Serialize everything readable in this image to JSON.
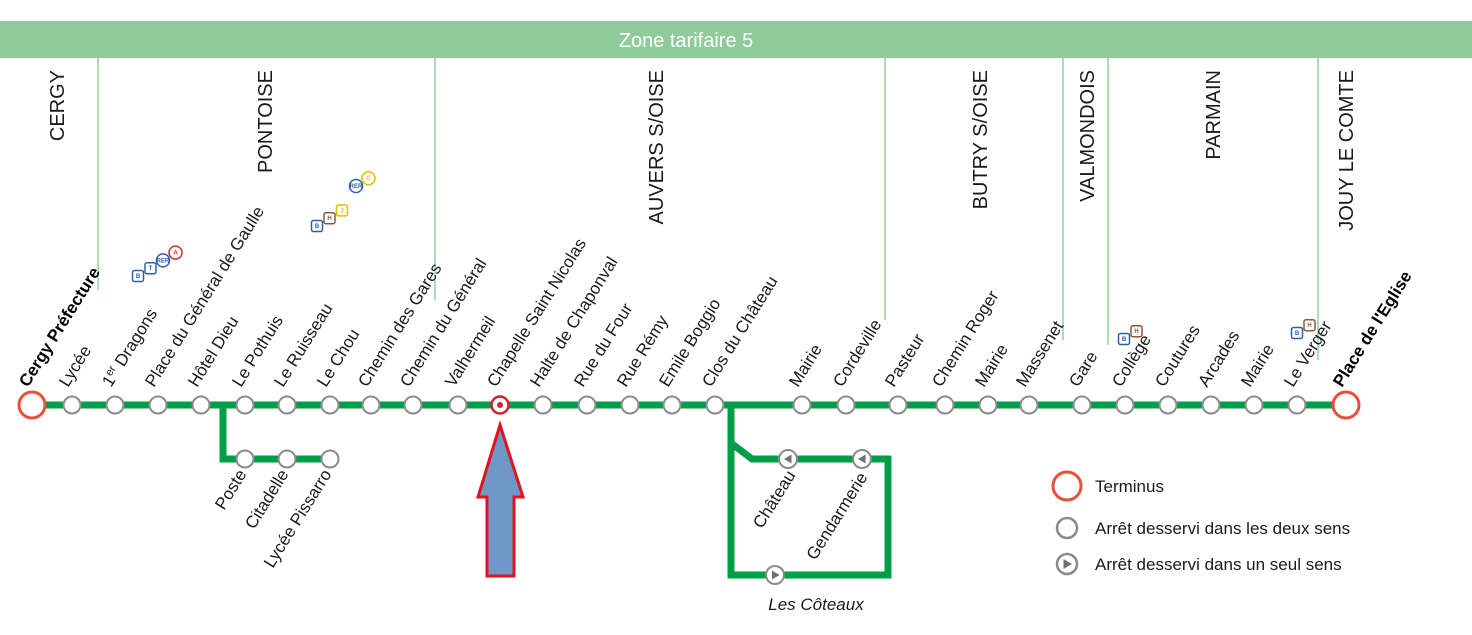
{
  "zone_band": {
    "label": "Zone tarifaire 5",
    "color": "#8fcb9b"
  },
  "colors": {
    "line": "#009e49",
    "terminus": "#e8503a",
    "stop_stroke": "#8a8a8a",
    "divider": "#7fc98f",
    "arrow_fill": "#6f97c8",
    "arrow_stroke": "#e0151b",
    "highlight_stop": "#d4202e",
    "badge_blue": "#2f5fa8",
    "badge_red": "#d42b2b",
    "badge_brown": "#8a5a3c",
    "badge_yellow": "#e0bf00"
  },
  "communes": [
    "CERGY",
    "PONTOISE",
    "AUVERS S/OISE",
    "BUTRY S/OISE",
    "VALMONDOIS",
    "PARMAIN",
    "JOUY LE COMTE"
  ],
  "main_stops": [
    {
      "label": "Cergy Préfecture",
      "type": "terminus",
      "bold": true
    },
    {
      "label": "Lycée",
      "type": "both"
    },
    {
      "label": "1er Dragons",
      "type": "both"
    },
    {
      "label": "Place du Général de Gaulle",
      "type": "both"
    },
    {
      "label": "Hôtel Dieu",
      "type": "both"
    },
    {
      "label": "Le Pothuis",
      "type": "both"
    },
    {
      "label": "Le Ruisseau",
      "type": "both"
    },
    {
      "label": "Le Chou",
      "type": "both"
    },
    {
      "label": "Chemin des Gares",
      "type": "both"
    },
    {
      "label": "Chemin du Général",
      "type": "both"
    },
    {
      "label": "Valhermeil",
      "type": "both"
    },
    {
      "label": "Chapelle Saint Nicolas",
      "type": "highlight"
    },
    {
      "label": "Halte de Chaponval",
      "type": "both"
    },
    {
      "label": "Rue du Four",
      "type": "both"
    },
    {
      "label": "Rue Rémy",
      "type": "both"
    },
    {
      "label": "Emile Boggio",
      "type": "both"
    },
    {
      "label": "Clos du Château",
      "type": "both"
    },
    {
      "label": "Mairie",
      "type": "both"
    },
    {
      "label": "Cordeville",
      "type": "both"
    },
    {
      "label": "Pasteur",
      "type": "both"
    },
    {
      "label": "Chemin Roger",
      "type": "both"
    },
    {
      "label": "Mairie",
      "type": "both"
    },
    {
      "label": "Massenet",
      "type": "both"
    },
    {
      "label": "Gare",
      "type": "both"
    },
    {
      "label": "Collège",
      "type": "both"
    },
    {
      "label": "Coutures",
      "type": "both"
    },
    {
      "label": "Arcades",
      "type": "both"
    },
    {
      "label": "Mairie",
      "type": "both"
    },
    {
      "label": "Le Verger",
      "type": "both"
    },
    {
      "label": "Place de l'Eglise",
      "type": "terminus",
      "bold": true
    }
  ],
  "branch_stops": [
    "Poste",
    "Citadelle",
    "Lycée Pissarro"
  ],
  "loop_stops": [
    "Château",
    "Gendarmerie",
    "Les Côteaux"
  ],
  "connections": {
    "cergy_prefecture": [
      "bus",
      "tram",
      "RER",
      "A"
    ],
    "place_de_gaulle": [
      "bus",
      "H",
      "J"
    ],
    "hotel_dieu": [
      "RER",
      "C"
    ],
    "gare_valmondois": [
      "bus",
      "H"
    ],
    "mairie_parmain": [
      "bus",
      "H"
    ]
  },
  "legend": [
    {
      "icon": "terminus",
      "label": "Terminus"
    },
    {
      "icon": "both",
      "label": "Arrêt desservi dans les deux sens"
    },
    {
      "icon": "one",
      "label": "Arrêt desservi dans un seul sens"
    }
  ]
}
